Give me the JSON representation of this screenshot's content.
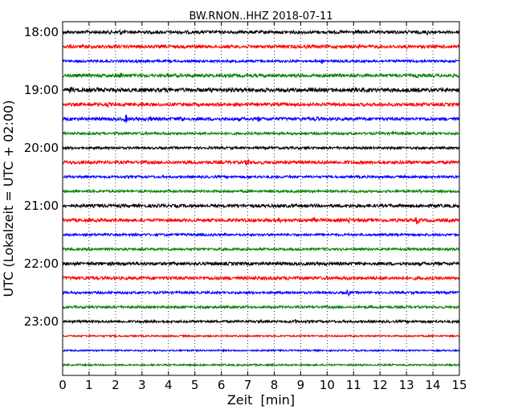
{
  "chart_data": {
    "type": "line",
    "title": "BW.RNON..HHZ 2018-07-11",
    "xlabel": "Zeit  [min]",
    "ylabel": "UTC (Lokalzeit = UTC + 02:00)",
    "xlim": [
      0,
      15
    ],
    "x_ticks": [
      "0",
      "1",
      "2",
      "3",
      "4",
      "5",
      "6",
      "7",
      "8",
      "9",
      "10",
      "11",
      "12",
      "13",
      "14",
      "15"
    ],
    "y_ticks": [
      "18:00",
      "19:00",
      "20:00",
      "21:00",
      "22:00",
      "23:00"
    ],
    "grid": "vertical-dotted",
    "trace_colors": [
      "#000000",
      "#ff0000",
      "#0000ff",
      "#008000"
    ],
    "traces": [
      {
        "start": "18:00",
        "noise": 2,
        "events": [
          [
            2.2,
            3
          ],
          [
            3,
            2.5
          ],
          [
            11.5,
            2
          ],
          [
            13.8,
            3
          ]
        ]
      },
      {
        "start": "18:15",
        "noise": 2,
        "events": [
          [
            2,
            2
          ],
          [
            6,
            2
          ],
          [
            9.5,
            2
          ],
          [
            13,
            2
          ]
        ]
      },
      {
        "start": "18:30",
        "noise": 1.5,
        "events": [
          [
            2.8,
            2
          ],
          [
            9.8,
            2
          ]
        ]
      },
      {
        "start": "18:45",
        "noise": 2,
        "events": [
          [
            2.2,
            4
          ],
          [
            4.7,
            2
          ],
          [
            10.5,
            2
          ],
          [
            13.4,
            2
          ]
        ]
      },
      {
        "start": "19:00",
        "noise": 2.5,
        "events": [
          [
            0.3,
            4
          ],
          [
            1.3,
            2
          ],
          [
            3,
            2
          ],
          [
            13,
            2
          ]
        ]
      },
      {
        "start": "19:15",
        "noise": 2,
        "events": [
          [
            1.7,
            3
          ],
          [
            3,
            3
          ],
          [
            6.5,
            2
          ],
          [
            8.3,
            2
          ]
        ]
      },
      {
        "start": "19:30",
        "noise": 2,
        "events": [
          [
            2.4,
            5
          ],
          [
            3.3,
            3
          ],
          [
            4.5,
            4
          ],
          [
            7.4,
            3
          ],
          [
            9.6,
            3
          ]
        ]
      },
      {
        "start": "19:45",
        "noise": 1.5,
        "events": [
          [
            3,
            2
          ],
          [
            12.5,
            2
          ]
        ]
      },
      {
        "start": "20:00",
        "noise": 1.5,
        "events": [
          [
            8.5,
            2
          ],
          [
            9.2,
            2
          ]
        ]
      },
      {
        "start": "20:15",
        "noise": 2,
        "events": [
          [
            7,
            5
          ],
          [
            8.4,
            2.5
          ],
          [
            10.8,
            2
          ]
        ]
      },
      {
        "start": "20:30",
        "noise": 1.5,
        "events": []
      },
      {
        "start": "20:45",
        "noise": 1.5,
        "events": [
          [
            13.5,
            2
          ]
        ]
      },
      {
        "start": "21:00",
        "noise": 2,
        "events": [
          [
            1.5,
            2
          ],
          [
            8.7,
            2
          ],
          [
            10.5,
            2
          ]
        ]
      },
      {
        "start": "21:15",
        "noise": 2,
        "events": [
          [
            8.2,
            2.5
          ],
          [
            9.5,
            3
          ],
          [
            10.8,
            4
          ],
          [
            13.4,
            5
          ]
        ]
      },
      {
        "start": "21:30",
        "noise": 1.5,
        "events": [
          [
            12.7,
            2.5
          ]
        ]
      },
      {
        "start": "21:45",
        "noise": 1.5,
        "events": []
      },
      {
        "start": "22:00",
        "noise": 2,
        "events": [
          [
            5.2,
            2
          ],
          [
            14.2,
            2
          ]
        ]
      },
      {
        "start": "22:15",
        "noise": 2,
        "events": [
          [
            0.4,
            2
          ],
          [
            8.5,
            2
          ]
        ]
      },
      {
        "start": "22:30",
        "noise": 1.5,
        "events": [
          [
            10.8,
            4
          ]
        ]
      },
      {
        "start": "22:45",
        "noise": 1.5,
        "events": []
      },
      {
        "start": "23:00",
        "noise": 1.5,
        "events": [
          [
            7.4,
            2
          ],
          [
            8.8,
            2
          ]
        ]
      },
      {
        "start": "23:15",
        "noise": 1,
        "events": []
      },
      {
        "start": "23:30",
        "noise": 1,
        "events": []
      },
      {
        "start": "23:45",
        "noise": 1,
        "events": []
      }
    ]
  }
}
